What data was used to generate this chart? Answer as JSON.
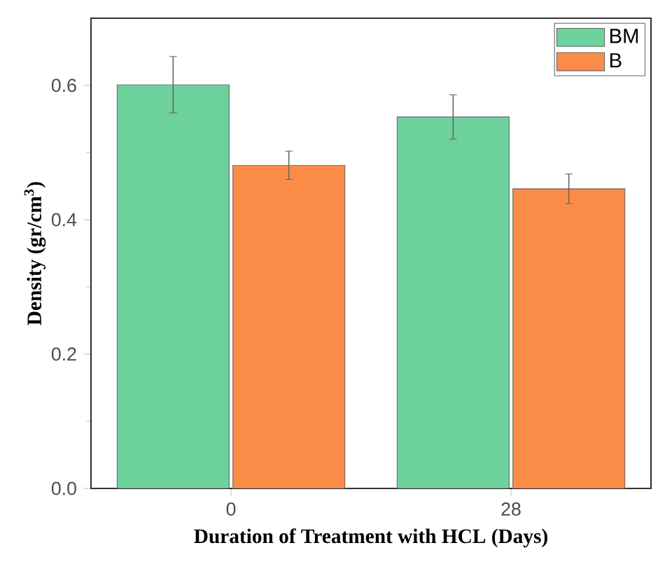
{
  "chart_data": {
    "type": "bar",
    "xlabel": "Duration of Treatment with HCL (Days)",
    "ylabel": "Density (gr/cm$^{3}$)",
    "categories": [
      "0",
      "28"
    ],
    "series": [
      {
        "name": "BM",
        "color": "#6dd19c",
        "values": [
          0.601,
          0.553
        ],
        "errors": [
          0.042,
          0.033
        ]
      },
      {
        "name": "B",
        "color": "#fb8c48",
        "values": [
          0.481,
          0.446
        ],
        "errors": [
          0.021,
          0.022
        ]
      }
    ],
    "ylim": [
      0,
      0.7
    ],
    "yticks": [
      {
        "value": 0,
        "label": "0.0"
      },
      0.2,
      0.4,
      0.6
    ],
    "legend": "top right",
    "grid": false
  }
}
